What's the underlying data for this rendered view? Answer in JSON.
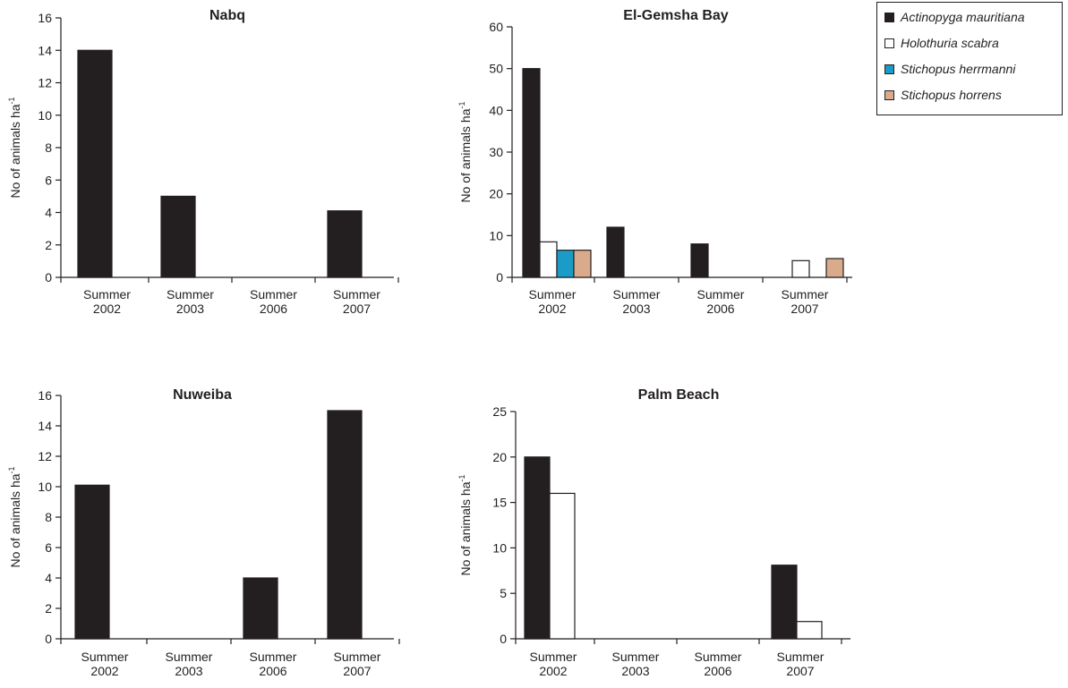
{
  "legend": {
    "items": [
      {
        "label": "Actinopyga mauritiana",
        "color": "#231f20"
      },
      {
        "label": "Holothuria scabra",
        "color": "#ffffff"
      },
      {
        "label": "Stichopus herrmanni",
        "color": "#1a9cc7"
      },
      {
        "label": "Stichopus horrens",
        "color": "#d9ab8b"
      }
    ]
  },
  "chart_data": [
    {
      "type": "bar",
      "title": "Nabq",
      "ylabel": "No of animals ha",
      "ylabel_sup": "-1",
      "categories": [
        [
          "Summer",
          "2002"
        ],
        [
          "Summer",
          "2003"
        ],
        [
          "Summer",
          "2006"
        ],
        [
          "Summer",
          "2007"
        ]
      ],
      "ylim": [
        0,
        16
      ],
      "yticks": [
        0,
        2,
        4,
        6,
        8,
        10,
        12,
        14,
        16
      ],
      "series": [
        {
          "name": "Actinopyga mauritiana",
          "values": [
            14,
            5,
            0,
            4.1
          ]
        }
      ]
    },
    {
      "type": "bar",
      "title": "El-Gemsha Bay",
      "ylabel": "No of animals ha",
      "ylabel_sup": "-1",
      "categories": [
        [
          "Summer",
          "2002"
        ],
        [
          "Summer",
          "2003"
        ],
        [
          "Summer",
          "2006"
        ],
        [
          "Summer",
          "2007"
        ]
      ],
      "ylim": [
        0,
        60
      ],
      "yticks": [
        0,
        10,
        20,
        30,
        40,
        50,
        60
      ],
      "series": [
        {
          "name": "Actinopyga mauritiana",
          "values": [
            50,
            12,
            8,
            0
          ]
        },
        {
          "name": "Holothuria scabra",
          "values": [
            8.5,
            0,
            0,
            4
          ]
        },
        {
          "name": "Stichopus herrmanni",
          "values": [
            6.5,
            0,
            0,
            0
          ]
        },
        {
          "name": "Stichopus horrens",
          "values": [
            6.5,
            0,
            0,
            4.5
          ]
        }
      ]
    },
    {
      "type": "bar",
      "title": "Nuweiba",
      "ylabel": "No of animals ha",
      "ylabel_sup": "-1",
      "categories": [
        [
          "Summer",
          "2002"
        ],
        [
          "Summer",
          "2003"
        ],
        [
          "Summer",
          "2006"
        ],
        [
          "Summer",
          "2007"
        ]
      ],
      "ylim": [
        0,
        16
      ],
      "yticks": [
        0,
        2,
        4,
        6,
        8,
        10,
        12,
        14,
        16
      ],
      "series": [
        {
          "name": "Actinopyga mauritiana",
          "values": [
            10.1,
            0,
            4,
            15
          ]
        }
      ]
    },
    {
      "type": "bar",
      "title": "Palm Beach",
      "ylabel": "No of animals ha",
      "ylabel_sup": "-1",
      "categories": [
        [
          "Summer",
          "2002"
        ],
        [
          "Summer",
          "2003"
        ],
        [
          "Summer",
          "2006"
        ],
        [
          "Summer",
          "2007"
        ]
      ],
      "ylim": [
        0,
        25
      ],
      "yticks": [
        0,
        5,
        10,
        15,
        20,
        25
      ],
      "series": [
        {
          "name": "Actinopyga mauritiana",
          "values": [
            20,
            0,
            0,
            8.1
          ]
        },
        {
          "name": "Holothuria scabra",
          "values": [
            16,
            0,
            0,
            1.9
          ]
        }
      ]
    }
  ]
}
